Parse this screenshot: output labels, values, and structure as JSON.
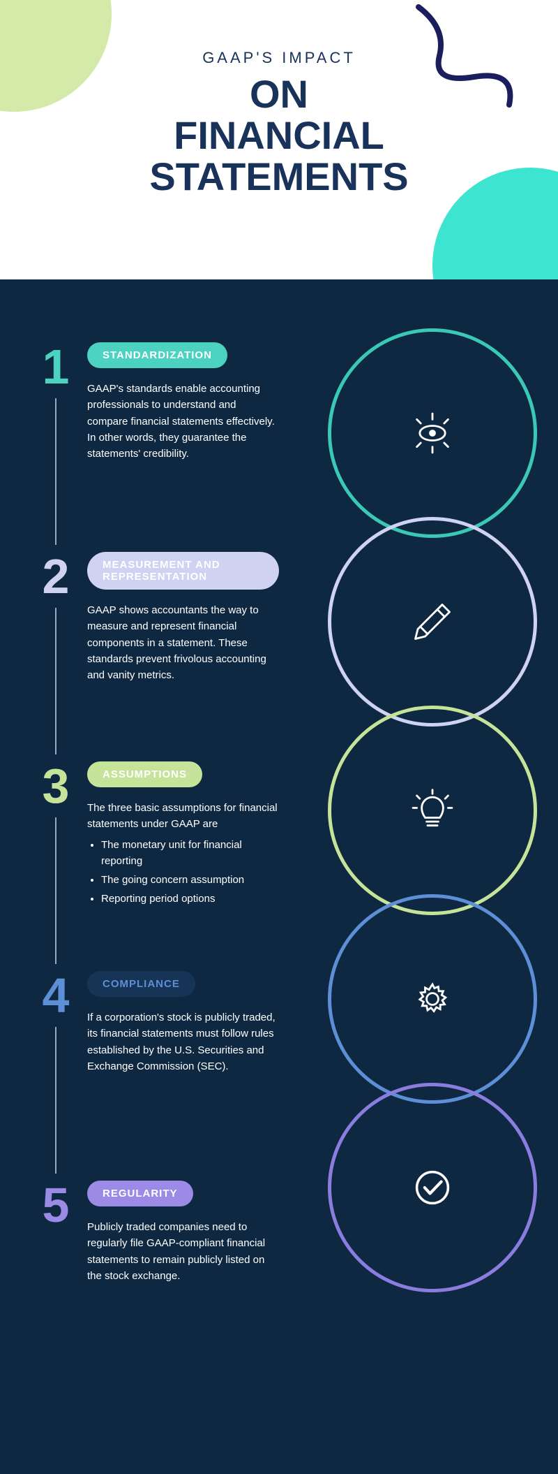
{
  "colors": {
    "header_bg": "#ffffff",
    "main_bg": "#0f2841",
    "navy_text": "#18325a",
    "blob_green": "#d4eaa8",
    "blob_teal": "#3de4d0",
    "squiggle": "#1a1e5c",
    "white": "#ffffff"
  },
  "header": {
    "eyebrow": "GAAP'S IMPACT",
    "title_line1": "ON",
    "title_line2": "FINANCIAL",
    "title_line3": "STATEMENTS"
  },
  "items": [
    {
      "num": "1",
      "num_color": "#4bd2c0",
      "pill_bg": "#4bd2c0",
      "pill_text_color": "#ffffff",
      "label": "STANDARDIZATION",
      "desc": "GAAP's standards enable accounting professionals to understand and compare financial statements effectively. In other words, they guarantee the statements' credibility.",
      "circle_color": "#3bc9b7",
      "icon": "eye"
    },
    {
      "num": "2",
      "num_color": "#cfd2f0",
      "pill_bg": "#cfd2f0",
      "pill_text_color": "#ffffff",
      "label": "MEASUREMENT AND REPRESENTATION",
      "desc": "GAAP shows accountants the way to measure and represent financial components in a statement. These standards prevent frivolous accounting and vanity metrics.",
      "circle_color": "#cfd2f0",
      "icon": "pencil"
    },
    {
      "num": "3",
      "num_color": "#c5e49a",
      "pill_bg": "#c5e49a",
      "pill_text_color": "#ffffff",
      "label": "ASSUMPTIONS",
      "desc": "The three basic assumptions for financial statements under GAAP are",
      "bullets": [
        "The monetary unit for financial reporting",
        "The going concern assumption",
        "Reporting period options"
      ],
      "circle_color": "#c5e49a",
      "icon": "bulb"
    },
    {
      "num": "4",
      "num_color": "#5d8fd6",
      "pill_bg": "#163456",
      "pill_text_color": "#5d8fd6",
      "label": "COMPLIANCE",
      "desc": "If a corporation's stock is publicly traded, its financial statements must follow rules established by the U.S. Securities and Exchange Commission (SEC).",
      "circle_color": "#5d8fd6",
      "icon": "gear"
    },
    {
      "num": "5",
      "num_color": "#9b8ae6",
      "pill_bg": "#9b8ae6",
      "pill_text_color": "#ffffff",
      "label": "REGULARITY",
      "desc": "Publicly traded companies need to regularly file GAAP-compliant financial statements to remain publicly listed on the stock exchange.",
      "circle_color": "#8b7de0",
      "icon": "check"
    }
  ]
}
